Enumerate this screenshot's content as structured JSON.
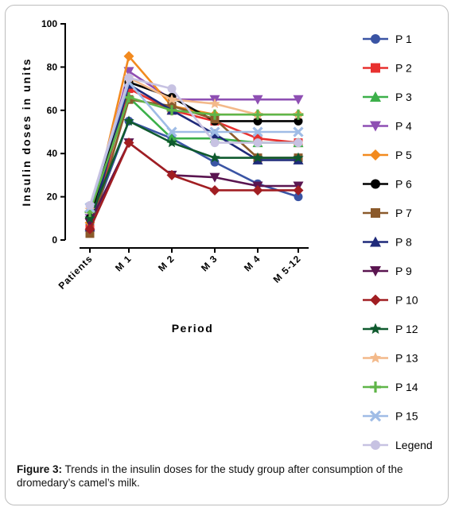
{
  "caption": {
    "label": "Figure 3:",
    "text": "Trends in the insulin doses for the study group after consumption of the dromedary’s camel’s milk."
  },
  "chart_data": {
    "type": "line",
    "title": "",
    "xlabel": "Period",
    "ylabel": "Insulin doses in units",
    "categories": [
      "Patients",
      "M 1",
      "M 2",
      "M 3",
      "M 4",
      "M 5-12"
    ],
    "yticks": [
      "0",
      "20",
      "40",
      "60",
      "80",
      "100"
    ],
    "ylim": [
      0,
      100
    ],
    "grid": false,
    "legend_position": "right",
    "series": [
      {
        "name": "P 1",
        "color": "#3a54a4",
        "marker": "circle",
        "values": [
          7,
          55,
          47,
          36,
          26,
          20
        ]
      },
      {
        "name": "P 2",
        "color": "#e8302f",
        "marker": "square",
        "values": [
          5,
          70,
          60,
          55,
          47,
          45
        ]
      },
      {
        "name": "P 3",
        "color": "#3cb04a",
        "marker": "triangle-up",
        "values": [
          12,
          66,
          47,
          47,
          45,
          45
        ]
      },
      {
        "name": "P 4",
        "color": "#8e4fb3",
        "marker": "triangle-down",
        "values": [
          10,
          78,
          65,
          65,
          65,
          65
        ]
      },
      {
        "name": "P 5",
        "color": "#f28a1f",
        "marker": "diamond",
        "values": [
          8,
          85,
          62,
          58,
          58,
          58
        ]
      },
      {
        "name": "P 6",
        "color": "#000000",
        "marker": "circle",
        "values": [
          10,
          73,
          66,
          55,
          55,
          55
        ]
      },
      {
        "name": "P 7",
        "color": "#8b5a2b",
        "marker": "square",
        "values": [
          3,
          65,
          62,
          56,
          38,
          38
        ]
      },
      {
        "name": "P 8",
        "color": "#1f2a7a",
        "marker": "triangle-up",
        "values": [
          6,
          72,
          60,
          49,
          37,
          37
        ]
      },
      {
        "name": "P 9",
        "color": "#5a1550",
        "marker": "triangle-down",
        "values": [
          8,
          45,
          30,
          29,
          25,
          25
        ]
      },
      {
        "name": "P 10",
        "color": "#a11e22",
        "marker": "diamond",
        "values": [
          5,
          45,
          30,
          23,
          23,
          23
        ]
      },
      {
        "name": "P 12",
        "color": "#0f5a2e",
        "marker": "star",
        "values": [
          10,
          55,
          45,
          38,
          38,
          38
        ]
      },
      {
        "name": "P 13",
        "color": "#f3b98a",
        "marker": "star",
        "values": [
          14,
          75,
          65,
          63,
          58,
          58
        ]
      },
      {
        "name": "P 14",
        "color": "#5fb548",
        "marker": "plus",
        "values": [
          13,
          66,
          60,
          58,
          58,
          58
        ]
      },
      {
        "name": "P 15",
        "color": "#9fbce6",
        "marker": "x",
        "values": [
          15,
          73,
          50,
          50,
          50,
          50
        ]
      },
      {
        "name": "Legend",
        "color": "#c7c2e2",
        "marker": "circle",
        "values": [
          16,
          75,
          70,
          45,
          45,
          45
        ]
      }
    ]
  }
}
